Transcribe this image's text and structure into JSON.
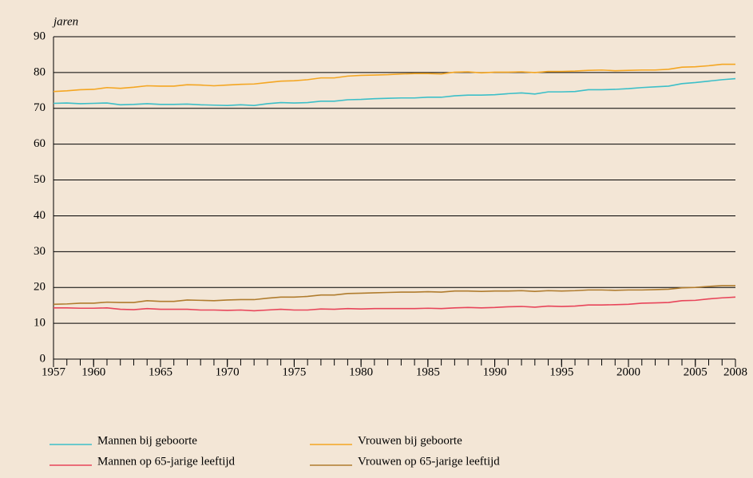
{
  "chart_data": {
    "type": "line",
    "y_label": "jaren",
    "x": [
      1957,
      1958,
      1959,
      1960,
      1961,
      1962,
      1963,
      1964,
      1965,
      1966,
      1967,
      1968,
      1969,
      1970,
      1971,
      1972,
      1973,
      1974,
      1975,
      1976,
      1977,
      1978,
      1979,
      1980,
      1981,
      1982,
      1983,
      1984,
      1985,
      1986,
      1987,
      1988,
      1989,
      1990,
      1991,
      1992,
      1993,
      1994,
      1995,
      1996,
      1997,
      1998,
      1999,
      2000,
      2001,
      2002,
      2003,
      2004,
      2005,
      2006,
      2007,
      2008
    ],
    "series": [
      {
        "name": "Mannen bij geboorte",
        "color": "#3cbfc8",
        "values": [
          71.4,
          71.5,
          71.3,
          71.4,
          71.5,
          71.0,
          71.1,
          71.3,
          71.1,
          71.1,
          71.2,
          71.0,
          70.9,
          70.8,
          71.0,
          70.8,
          71.3,
          71.6,
          71.5,
          71.6,
          72.0,
          72.0,
          72.4,
          72.5,
          72.7,
          72.8,
          72.9,
          72.9,
          73.1,
          73.1,
          73.5,
          73.7,
          73.7,
          73.8,
          74.1,
          74.3,
          74.0,
          74.6,
          74.6,
          74.7,
          75.2,
          75.2,
          75.3,
          75.5,
          75.8,
          76.0,
          76.2,
          76.9,
          77.2,
          77.6,
          78.0,
          78.3
        ]
      },
      {
        "name": "Vrouwen bij geboorte",
        "color": "#f4a622",
        "values": [
          74.7,
          74.9,
          75.2,
          75.3,
          75.8,
          75.6,
          75.9,
          76.3,
          76.2,
          76.2,
          76.6,
          76.5,
          76.3,
          76.5,
          76.7,
          76.8,
          77.2,
          77.6,
          77.7,
          78.0,
          78.5,
          78.5,
          79.0,
          79.2,
          79.3,
          79.4,
          79.6,
          79.7,
          79.7,
          79.6,
          80.1,
          80.2,
          79.9,
          80.1,
          80.1,
          80.2,
          80.0,
          80.3,
          80.3,
          80.4,
          80.6,
          80.7,
          80.5,
          80.6,
          80.7,
          80.7,
          80.9,
          81.5,
          81.6,
          81.9,
          82.3,
          82.3
        ]
      },
      {
        "name": "Mannen op 65-jarige leeftijd",
        "color": "#e8455a",
        "values": [
          14.3,
          14.3,
          14.2,
          14.2,
          14.3,
          13.9,
          13.8,
          14.1,
          13.9,
          13.9,
          13.9,
          13.7,
          13.7,
          13.6,
          13.7,
          13.5,
          13.7,
          13.9,
          13.7,
          13.7,
          14.0,
          13.9,
          14.1,
          14.0,
          14.1,
          14.1,
          14.1,
          14.1,
          14.2,
          14.1,
          14.3,
          14.4,
          14.3,
          14.4,
          14.6,
          14.7,
          14.5,
          14.8,
          14.7,
          14.8,
          15.1,
          15.1,
          15.2,
          15.3,
          15.6,
          15.7,
          15.8,
          16.3,
          16.4,
          16.8,
          17.1,
          17.3
        ]
      },
      {
        "name": "Vrouwen op 65-jarige leeftijd",
        "color": "#b07c2e",
        "values": [
          15.3,
          15.4,
          15.6,
          15.6,
          15.9,
          15.8,
          15.8,
          16.3,
          16.1,
          16.1,
          16.5,
          16.4,
          16.3,
          16.5,
          16.6,
          16.6,
          17.0,
          17.3,
          17.3,
          17.5,
          17.9,
          17.9,
          18.3,
          18.4,
          18.5,
          18.6,
          18.7,
          18.7,
          18.8,
          18.7,
          19.0,
          19.0,
          18.9,
          19.0,
          19.0,
          19.1,
          18.9,
          19.1,
          19.0,
          19.1,
          19.3,
          19.3,
          19.2,
          19.3,
          19.3,
          19.4,
          19.5,
          19.9,
          20.0,
          20.3,
          20.5,
          20.5
        ]
      }
    ],
    "xlim": [
      1957,
      2008
    ],
    "xticks": [
      1957,
      1960,
      1965,
      1970,
      1975,
      1980,
      1985,
      1990,
      1995,
      2000,
      2005,
      2008
    ],
    "ylim": [
      0,
      90
    ],
    "yticks": [
      0,
      10,
      20,
      30,
      40,
      50,
      60,
      70,
      80,
      90
    ],
    "grid": true
  }
}
